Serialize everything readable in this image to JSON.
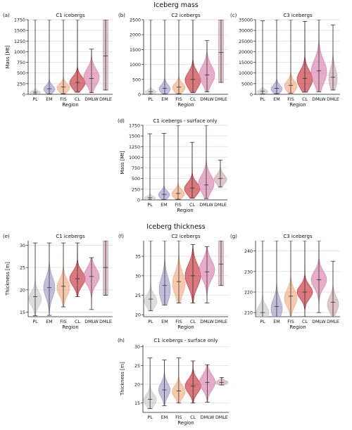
{
  "figure": {
    "section_titles": [
      "Iceberg mass",
      "Iceberg thickness"
    ]
  },
  "colors": {
    "PL": "#c7c7c7",
    "EM": "#9b96c8",
    "FIS": "#f0a77c",
    "CL": "#c4262e",
    "DMLW": "#d77aa6",
    "DMLE": "#c9a3ab"
  },
  "chart_data": [
    {
      "type": "violin",
      "panel": "(a)",
      "title": "C1 icebergs",
      "xlabel": "Region",
      "ylabel": "Mass [Mt]",
      "ylim": [
        0,
        1750
      ],
      "yticks": [
        0,
        250,
        500,
        750,
        1000,
        1250,
        1500,
        1750
      ],
      "grid": true,
      "categories": [
        "PL",
        "EM",
        "FIS",
        "CL",
        "DMLW",
        "DMLE"
      ],
      "series": [
        {
          "cat": "PL",
          "min": 5,
          "max": 1750,
          "median": 50,
          "mode": 45,
          "width": 0.4,
          "spread": 35
        },
        {
          "cat": "EM",
          "min": 10,
          "max": 1750,
          "median": 130,
          "mode": 120,
          "width": 0.4,
          "spread": 85
        },
        {
          "cat": "FIS",
          "min": 15,
          "max": 1750,
          "median": 170,
          "mode": 150,
          "width": 0.45,
          "spread": 95
        },
        {
          "cat": "CL",
          "min": 50,
          "max": 1750,
          "median": 280,
          "mode": 270,
          "width": 0.55,
          "spread": 140
        },
        {
          "cat": "DMLW",
          "min": 40,
          "max": 1060,
          "median": 370,
          "mode": 400,
          "width": 0.55,
          "spread": 190
        },
        {
          "cat": "DMLE",
          "min": 100,
          "max": 1750,
          "median": 900,
          "mode": 900,
          "width": 0.18,
          "spread": 3000
        }
      ]
    },
    {
      "type": "violin",
      "panel": "(b)",
      "title": "C2 icebergs",
      "xlabel": "Region",
      "ylabel": "",
      "ylim": [
        0,
        2500
      ],
      "yticks": [
        0,
        500,
        1000,
        1500,
        2000,
        2500
      ],
      "grid": true,
      "categories": [
        "PL",
        "EM",
        "FIS",
        "CL",
        "DMLW",
        "DMLE"
      ],
      "series": [
        {
          "cat": "PL",
          "min": 10,
          "max": 2500,
          "median": 90,
          "mode": 80,
          "width": 0.4,
          "spread": 60
        },
        {
          "cat": "EM",
          "min": 15,
          "max": 2500,
          "median": 200,
          "mode": 180,
          "width": 0.4,
          "spread": 140
        },
        {
          "cat": "FIS",
          "min": 20,
          "max": 2500,
          "median": 240,
          "mode": 220,
          "width": 0.45,
          "spread": 150
        },
        {
          "cat": "CL",
          "min": 60,
          "max": 2500,
          "median": 500,
          "mode": 470,
          "width": 0.55,
          "spread": 260
        },
        {
          "cat": "DMLW",
          "min": 80,
          "max": 1800,
          "median": 650,
          "mode": 650,
          "width": 0.55,
          "spread": 300
        },
        {
          "cat": "DMLE",
          "min": 400,
          "max": 2500,
          "median": 1400,
          "mode": 1400,
          "width": 0.18,
          "spread": 5000
        }
      ]
    },
    {
      "type": "violin",
      "panel": "(c)",
      "title": "C3 icebergs",
      "xlabel": "Region",
      "ylabel": "",
      "ylim": [
        0,
        35000
      ],
      "yticks": [
        0,
        5000,
        10000,
        15000,
        20000,
        25000,
        30000,
        35000
      ],
      "grid": true,
      "categories": [
        "PL",
        "EM",
        "FIS",
        "CL",
        "DMLW",
        "DMLE"
      ],
      "series": [
        {
          "cat": "PL",
          "min": 200,
          "max": 34500,
          "median": 1400,
          "mode": 1200,
          "width": 0.4,
          "spread": 900
        },
        {
          "cat": "EM",
          "min": 300,
          "max": 35000,
          "median": 2800,
          "mode": 2500,
          "width": 0.4,
          "spread": 1800
        },
        {
          "cat": "FIS",
          "min": 500,
          "max": 35000,
          "median": 4200,
          "mode": 3800,
          "width": 0.45,
          "spread": 2400
        },
        {
          "cat": "CL",
          "min": 1000,
          "max": 34200,
          "median": 7500,
          "mode": 7000,
          "width": 0.55,
          "spread": 4000
        },
        {
          "cat": "DMLW",
          "min": 1200,
          "max": 35000,
          "median": 11000,
          "mode": 10500,
          "width": 0.55,
          "spread": 5500
        },
        {
          "cat": "DMLE",
          "min": 2000,
          "max": 32500,
          "median": 8000,
          "mode": 7500,
          "width": 0.3,
          "spread": 4500
        }
      ]
    },
    {
      "type": "violin",
      "panel": "(d)",
      "title": "C1 icebergs - surface only",
      "xlabel": "Region",
      "ylabel": "Mass [Mt]",
      "ylim": [
        0,
        1750
      ],
      "yticks": [
        0,
        250,
        500,
        750,
        1000,
        1250,
        1500,
        1750
      ],
      "grid": true,
      "categories": [
        "PL",
        "EM",
        "FIS",
        "CL",
        "DMLW",
        "DMLE"
      ],
      "series": [
        {
          "cat": "PL",
          "min": 5,
          "max": 1550,
          "median": 50,
          "mode": 45,
          "width": 0.4,
          "spread": 40
        },
        {
          "cat": "EM",
          "min": 10,
          "max": 1560,
          "median": 130,
          "mode": 120,
          "width": 0.4,
          "spread": 85
        },
        {
          "cat": "FIS",
          "min": 15,
          "max": 1750,
          "median": 150,
          "mode": 140,
          "width": 0.45,
          "spread": 95
        },
        {
          "cat": "CL",
          "min": 40,
          "max": 1350,
          "median": 280,
          "mode": 260,
          "width": 0.55,
          "spread": 140
        },
        {
          "cat": "DMLW",
          "min": 30,
          "max": 1750,
          "median": 350,
          "mode": 380,
          "width": 0.55,
          "spread": 200
        },
        {
          "cat": "DMLE",
          "min": 300,
          "max": 930,
          "median": 500,
          "mode": 480,
          "width": 0.45,
          "spread": 110
        }
      ]
    },
    {
      "type": "violin",
      "panel": "(e)",
      "title": "C1 icebergs",
      "xlabel": "Region",
      "ylabel": "Thickness [m]",
      "ylim": [
        14,
        31
      ],
      "yticks": [
        15,
        20,
        25,
        30
      ],
      "grid": true,
      "categories": [
        "PL",
        "EM",
        "FIS",
        "CL",
        "DMLW",
        "DMLE"
      ],
      "series": [
        {
          "cat": "PL",
          "min": 14.2,
          "max": 30.5,
          "median": 18.5,
          "mode": 18.0,
          "width": 0.45,
          "spread": 1.6
        },
        {
          "cat": "EM",
          "min": 14.3,
          "max": 30.5,
          "median": 20.5,
          "mode": 20.5,
          "width": 0.4,
          "spread": 2.2
        },
        {
          "cat": "FIS",
          "min": 16.2,
          "max": 30.5,
          "median": 20.8,
          "mode": 20.5,
          "width": 0.45,
          "spread": 1.8
        },
        {
          "cat": "CL",
          "min": 18.5,
          "max": 30.5,
          "median": 22.5,
          "mode": 22.5,
          "width": 0.55,
          "spread": 1.6
        },
        {
          "cat": "DMLW",
          "min": 15.6,
          "max": 27.2,
          "median": 23.0,
          "mode": 23.0,
          "width": 0.55,
          "spread": 1.8
        },
        {
          "cat": "DMLE",
          "min": 18.8,
          "max": 31.0,
          "median": 25.0,
          "mode": 25.0,
          "width": 0.18,
          "spread": 30
        }
      ]
    },
    {
      "type": "violin",
      "panel": "(f)",
      "title": "C2 icebergs",
      "xlabel": "Region",
      "ylabel": "",
      "ylim": [
        19.5,
        39
      ],
      "yticks": [
        20,
        25,
        30,
        35
      ],
      "grid": true,
      "categories": [
        "PL",
        "EM",
        "FIS",
        "CL",
        "DMLW",
        "DMLE"
      ],
      "series": [
        {
          "cat": "PL",
          "min": 21.0,
          "max": 39.0,
          "median": 24.0,
          "mode": 23.5,
          "width": 0.45,
          "spread": 1.6
        },
        {
          "cat": "EM",
          "min": 22.5,
          "max": 39.0,
          "median": 27.5,
          "mode": 26.5,
          "width": 0.4,
          "spread": 3.0
        },
        {
          "cat": "FIS",
          "min": 23.0,
          "max": 39.0,
          "median": 28.5,
          "mode": 28.0,
          "width": 0.45,
          "spread": 2.8
        },
        {
          "cat": "CL",
          "min": 23.0,
          "max": 38.0,
          "median": 30.0,
          "mode": 30.0,
          "width": 0.55,
          "spread": 2.8
        },
        {
          "cat": "DMLW",
          "min": 23.0,
          "max": 37.5,
          "median": 31.0,
          "mode": 31.5,
          "width": 0.55,
          "spread": 2.4
        },
        {
          "cat": "DMLE",
          "min": 27.5,
          "max": 39.0,
          "median": 33.0,
          "mode": 33.0,
          "width": 0.18,
          "spread": 30
        }
      ]
    },
    {
      "type": "violin",
      "panel": "(g)",
      "title": "C3 icebergs",
      "xlabel": "Region",
      "ylabel": "",
      "ylim": [
        208,
        245
      ],
      "yticks": [
        210,
        220,
        230,
        240
      ],
      "grid": true,
      "categories": [
        "PL",
        "EM",
        "FIS",
        "CL",
        "DMLW",
        "DMLE"
      ],
      "series": [
        {
          "cat": "PL",
          "min": 204,
          "max": 245,
          "median": 210,
          "mode": 210,
          "width": 0.45,
          "spread": 3.2
        },
        {
          "cat": "EM",
          "min": 204,
          "max": 245,
          "median": 213,
          "mode": 212,
          "width": 0.4,
          "spread": 4.5
        },
        {
          "cat": "FIS",
          "min": 205,
          "max": 245,
          "median": 218,
          "mode": 217,
          "width": 0.45,
          "spread": 4.0
        },
        {
          "cat": "CL",
          "min": 208,
          "max": 245,
          "median": 220,
          "mode": 220,
          "width": 0.55,
          "spread": 3.2
        },
        {
          "cat": "DMLW",
          "min": 210,
          "max": 245,
          "median": 226,
          "mode": 226,
          "width": 0.55,
          "spread": 4.0
        },
        {
          "cat": "DMLE",
          "min": 207,
          "max": 235,
          "median": 215,
          "mode": 214,
          "width": 0.4,
          "spread": 3.6
        }
      ]
    },
    {
      "type": "violin",
      "panel": "(h)",
      "title": "C1 icebergs - surface only",
      "xlabel": "Region",
      "ylabel": "Thickness [m]",
      "ylim": [
        12.5,
        30.5
      ],
      "yticks": [
        15,
        20,
        25,
        30
      ],
      "grid": true,
      "categories": [
        "PL",
        "EM",
        "FIS",
        "CL",
        "DMLW",
        "DMLE"
      ],
      "series": [
        {
          "cat": "PL",
          "min": 13.5,
          "max": 27.0,
          "median": 16.0,
          "mode": 15.8,
          "width": 0.45,
          "spread": 1.5
        },
        {
          "cat": "EM",
          "min": 14.3,
          "max": 26.5,
          "median": 18.5,
          "mode": 18.5,
          "width": 0.4,
          "spread": 1.8
        },
        {
          "cat": "FIS",
          "min": 15.0,
          "max": 27.0,
          "median": 18.2,
          "mode": 18.0,
          "width": 0.45,
          "spread": 1.6
        },
        {
          "cat": "CL",
          "min": 15.0,
          "max": 26.2,
          "median": 19.5,
          "mode": 19.5,
          "width": 0.55,
          "spread": 1.8
        },
        {
          "cat": "DMLW",
          "min": 15.2,
          "max": 25.2,
          "median": 20.5,
          "mode": 20.5,
          "width": 0.55,
          "spread": 2.0
        },
        {
          "cat": "DMLE",
          "min": 19.8,
          "max": 21.8,
          "median": 20.5,
          "mode": 20.5,
          "width": 0.45,
          "spread": 0.5
        }
      ]
    }
  ]
}
